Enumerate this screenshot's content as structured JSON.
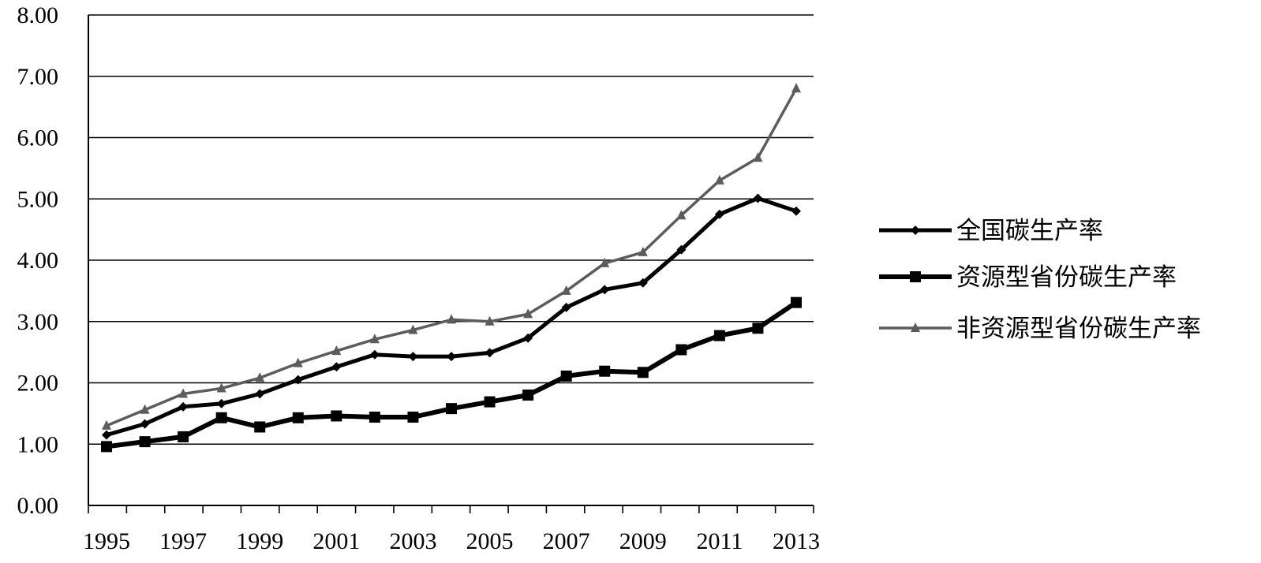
{
  "chart_data": {
    "type": "line",
    "title": "",
    "xlabel": "",
    "ylabel": "",
    "x": [
      1995,
      1996,
      1997,
      1998,
      1999,
      2000,
      2001,
      2002,
      2003,
      2004,
      2005,
      2006,
      2007,
      2008,
      2009,
      2010,
      2011,
      2012,
      2013
    ],
    "x_tick_labels": [
      "1995",
      "1997",
      "1999",
      "2001",
      "2003",
      "2005",
      "2007",
      "2009",
      "2011",
      "2013"
    ],
    "y_tick_labels": [
      "0.00",
      "1.00",
      "2.00",
      "3.00",
      "4.00",
      "5.00",
      "6.00",
      "7.00",
      "8.00"
    ],
    "ylim": [
      0,
      8
    ],
    "grid": "horizontal",
    "legend_position": "right",
    "series": [
      {
        "name": "全国碳生产率",
        "marker": "diamond",
        "color": "#000000",
        "values": [
          1.15,
          1.33,
          1.61,
          1.66,
          1.82,
          2.05,
          2.26,
          2.46,
          2.43,
          2.43,
          2.49,
          2.73,
          3.23,
          3.52,
          3.63,
          4.17,
          4.75,
          5.01,
          4.8
        ]
      },
      {
        "name": "资源型省份碳生产率",
        "marker": "square",
        "color": "#000000",
        "values": [
          0.96,
          1.04,
          1.12,
          1.43,
          1.28,
          1.43,
          1.46,
          1.44,
          1.44,
          1.58,
          1.69,
          1.8,
          2.11,
          2.19,
          2.17,
          2.54,
          2.77,
          2.89,
          3.31
        ]
      },
      {
        "name": "非资源型省份碳生产率",
        "marker": "triangle",
        "color": "#5c5c5c",
        "values": [
          1.3,
          1.56,
          1.82,
          1.91,
          2.08,
          2.32,
          2.52,
          2.71,
          2.86,
          3.03,
          3.0,
          3.12,
          3.5,
          3.95,
          4.13,
          4.73,
          5.3,
          5.67,
          6.8
        ]
      }
    ]
  }
}
